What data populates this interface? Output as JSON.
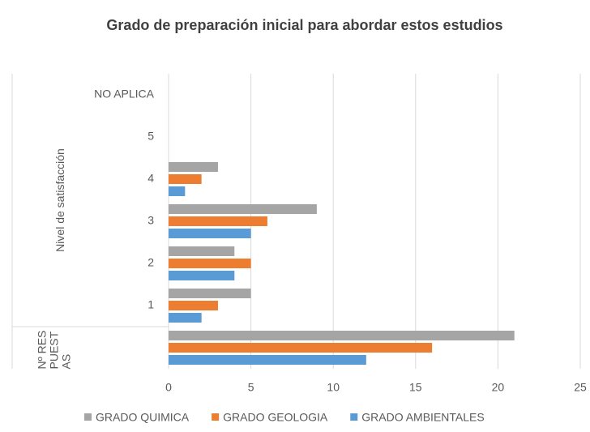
{
  "chart_data": {
    "type": "bar",
    "orientation": "horizontal",
    "title": "Grado de preparación inicial para abordar estos estudios",
    "categories": [
      "NO APLICA",
      "5",
      "4",
      "3",
      "2",
      "1",
      null
    ],
    "groups": [
      {
        "label": "Nivel de satisfacción",
        "span": 6
      },
      {
        "label": "Nº RESPUESTAS",
        "span": 1
      }
    ],
    "series": [
      {
        "name": "GRADO QUIMICA",
        "color": "#a5a5a5",
        "values": [
          null,
          null,
          3,
          9,
          4,
          5,
          21
        ]
      },
      {
        "name": "GRADO GEOLOGIA",
        "color": "#ed7d31",
        "values": [
          null,
          null,
          2,
          6,
          5,
          3,
          16
        ]
      },
      {
        "name": "GRADO AMBIENTALES",
        "color": "#5b9bd5",
        "values": [
          null,
          null,
          1,
          5,
          4,
          2,
          12
        ]
      }
    ],
    "xlim": [
      0,
      25
    ],
    "xticks": [
      0,
      5,
      10,
      15,
      20,
      25
    ],
    "grid": true,
    "legend": "bottom"
  }
}
